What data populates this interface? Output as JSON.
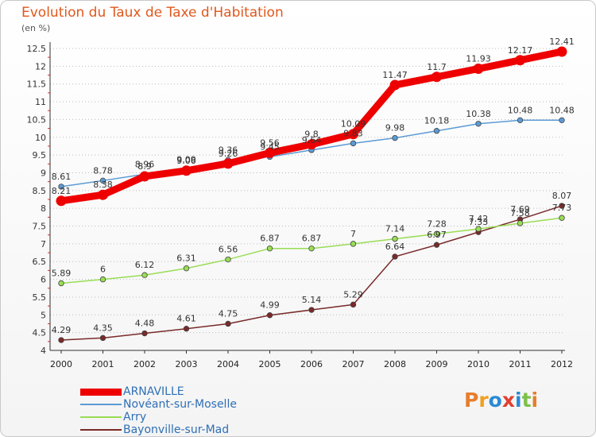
{
  "title": "Evolution du Taux de Taxe d'Habitation",
  "unit_label": "(en %)",
  "logo": {
    "text": "Proxiti",
    "letters": [
      "P",
      "r",
      "o",
      "x",
      "i",
      "t",
      "i"
    ],
    "colors": [
      "#e87d2c",
      "#f0a020",
      "#2a8ad4",
      "#e04030",
      "#2a8ad4",
      "#7cc04a",
      "#e87d2c"
    ]
  },
  "chart_data": {
    "type": "line",
    "x": [
      "2000",
      "2001",
      "2002",
      "2003",
      "2004",
      "2005",
      "2006",
      "2007",
      "2008",
      "2009",
      "2010",
      "2011",
      "2012"
    ],
    "ylim": [
      4,
      12.5
    ],
    "yticks": [
      "4",
      "4.5",
      "5",
      "5.5",
      "6",
      "6.5",
      "7",
      "7.5",
      "8",
      "8.5",
      "9",
      "9.5",
      "10",
      "10.5",
      "11",
      "11.5",
      "12",
      "12.5"
    ],
    "grid": "horizontal dotted",
    "legend_position": "bottom-left",
    "series": [
      {
        "name": "ARNAVILLE",
        "color": "#ee0000",
        "values": [
          8.21,
          8.38,
          8.9,
          9.06,
          9.26,
          9.56,
          9.8,
          10.09,
          11.47,
          11.7,
          11.93,
          12.17,
          12.41
        ],
        "labels": [
          "8.21",
          "8.38",
          "8.9",
          "9.06",
          "9.26",
          "9.56",
          "9.8",
          "10.09",
          "11.47",
          "11.7",
          "11.93",
          "12.17",
          "12.41"
        ]
      },
      {
        "name": "Novéant-sur-Moselle",
        "color": "#5b9bd5",
        "values": [
          8.61,
          8.78,
          8.96,
          9.09,
          9.36,
          9.45,
          9.64,
          9.83,
          9.98,
          10.18,
          10.38,
          10.48,
          10.48
        ],
        "labels": [
          "8.61",
          "8.78",
          "8.96",
          "9.09",
          "9.36",
          "9.45",
          "9.64",
          "9.83",
          "9.98",
          "10.18",
          "10.38",
          "10.48",
          "10.48"
        ]
      },
      {
        "name": "Arry",
        "color": "#99dd55",
        "values": [
          5.89,
          6,
          6.12,
          6.31,
          6.56,
          6.87,
          6.87,
          7,
          7.14,
          7.28,
          7.42,
          7.58,
          7.73
        ],
        "labels": [
          "5.89",
          "6",
          "6.12",
          "6.31",
          "6.56",
          "6.87",
          "6.87",
          "7",
          "7.14",
          "7.28",
          "7.42",
          "7.58",
          "7.73"
        ]
      },
      {
        "name": "Bayonville-sur-Mad",
        "color": "#7a2a2a",
        "values": [
          4.29,
          4.35,
          4.48,
          4.61,
          4.75,
          4.99,
          5.14,
          5.29,
          6.64,
          6.97,
          7.33,
          7.69,
          8.07
        ],
        "labels": [
          "4.29",
          "4.35",
          "4.48",
          "4.61",
          "4.75",
          "4.99",
          "5.14",
          "5.29",
          "6.64",
          "6.97",
          "7.33",
          "7.69",
          "8.07"
        ]
      }
    ]
  }
}
